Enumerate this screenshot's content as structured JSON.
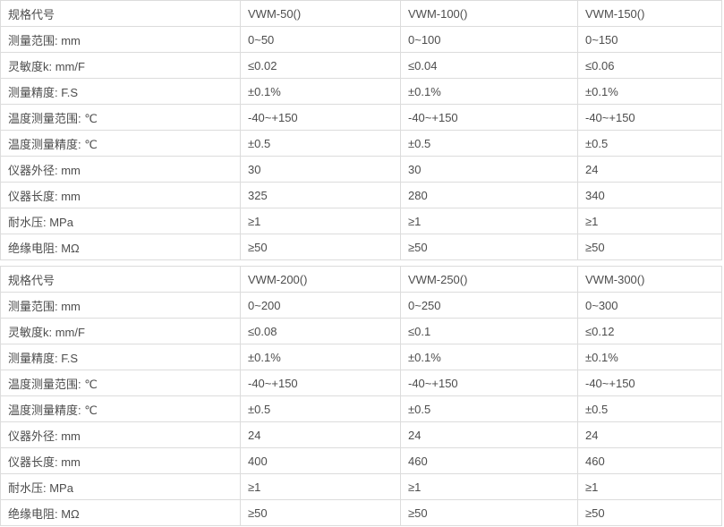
{
  "colors": {
    "background": "#ffffff",
    "border": "#dcdcdc",
    "text": "#4d4d4d"
  },
  "tables": [
    {
      "name": "vwm-specs-50-150",
      "rows": [
        {
          "cells": [
            "规格代号",
            "VWM-50()",
            "VWM-100()",
            "VWM-150()"
          ]
        },
        {
          "cells": [
            "测量范围: mm",
            "0~50",
            "0~100",
            "0~150"
          ]
        },
        {
          "cells": [
            "灵敏度k: mm/F",
            "≤0.02",
            "≤0.04",
            "≤0.06"
          ]
        },
        {
          "cells": [
            "测量精度: F.S",
            "±0.1%",
            "±0.1%",
            "±0.1%"
          ]
        },
        {
          "cells": [
            "温度测量范围: ℃",
            "-40~+150",
            "-40~+150",
            "-40~+150"
          ]
        },
        {
          "cells": [
            "温度测量精度: ℃",
            "±0.5",
            "±0.5",
            "±0.5"
          ]
        },
        {
          "cells": [
            "仪器外径: mm",
            "30",
            "30",
            "24"
          ]
        },
        {
          "cells": [
            "仪器长度: mm",
            "325",
            "280",
            "340"
          ]
        },
        {
          "cells": [
            "耐水压: MPa",
            "≥1",
            "≥1",
            "≥1"
          ]
        },
        {
          "cells": [
            "绝缘电阻: MΩ",
            "≥50",
            "≥50",
            "≥50"
          ]
        }
      ]
    },
    {
      "name": "vwm-specs-200-300",
      "rows": [
        {
          "cells": [
            "规格代号",
            "VWM-200()",
            "VWM-250()",
            "VWM-300()"
          ]
        },
        {
          "cells": [
            "测量范围: mm",
            "0~200",
            "0~250",
            "0~300"
          ]
        },
        {
          "cells": [
            "灵敏度k: mm/F",
            "≤0.08",
            "≤0.1",
            "≤0.12"
          ]
        },
        {
          "cells": [
            "测量精度: F.S",
            "±0.1%",
            "±0.1%",
            "±0.1%"
          ]
        },
        {
          "cells": [
            "温度测量范围: ℃",
            "-40~+150",
            "-40~+150",
            "-40~+150"
          ]
        },
        {
          "cells": [
            "温度测量精度: ℃",
            "±0.5",
            "±0.5",
            "±0.5"
          ]
        },
        {
          "cells": [
            "仪器外径: mm",
            "24",
            "24",
            "24"
          ]
        },
        {
          "cells": [
            "仪器长度: mm",
            "400",
            "460",
            "460"
          ]
        },
        {
          "cells": [
            "耐水压: MPa",
            "≥1",
            "≥1",
            "≥1"
          ]
        },
        {
          "cells": [
            "绝缘电阻: MΩ",
            "≥50",
            "≥50",
            "≥50"
          ]
        }
      ]
    }
  ]
}
